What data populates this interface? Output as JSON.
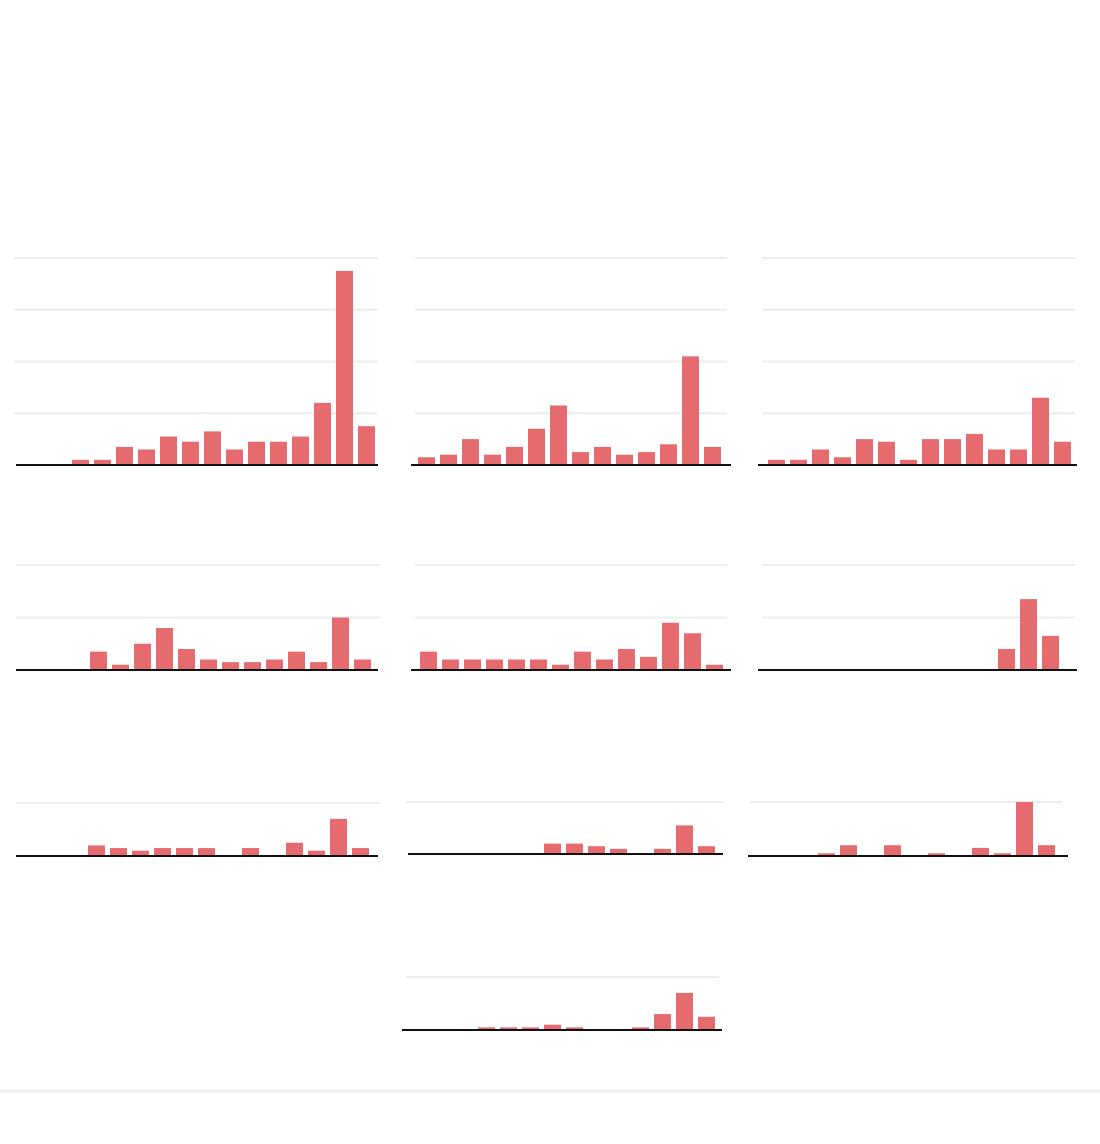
{
  "chart_data": [
    {
      "type": "bar",
      "color": "#e56b6f",
      "ylim": [
        0,
        40
      ],
      "yticks": [
        0,
        10,
        20,
        30,
        40
      ],
      "grid": true,
      "values": [
        1,
        1,
        3.5,
        3,
        5.5,
        4.5,
        6.5,
        3,
        4.5,
        4.5,
        5.5,
        12,
        37.5,
        7.5
      ]
    },
    {
      "type": "bar",
      "color": "#e56b6f",
      "ylim": [
        0,
        40
      ],
      "yticks": [
        0,
        10,
        20,
        30,
        40
      ],
      "grid": true,
      "values": [
        1.5,
        2,
        5,
        2,
        3.5,
        7,
        11.5,
        2.5,
        3.5,
        2,
        2.5,
        4,
        21,
        3.5
      ]
    },
    {
      "type": "bar",
      "color": "#e56b6f",
      "ylim": [
        0,
        40
      ],
      "yticks": [
        0,
        10,
        20,
        30,
        40
      ],
      "grid": true,
      "values": [
        1,
        1,
        3,
        1.5,
        5,
        4.5,
        1,
        5,
        5,
        6,
        3,
        3,
        13,
        4.5
      ]
    },
    {
      "type": "bar",
      "color": "#e56b6f",
      "ylim": [
        0,
        20
      ],
      "yticks": [
        0,
        10,
        20
      ],
      "grid": true,
      "values": [
        3.5,
        1,
        5,
        8,
        4,
        2,
        1.5,
        1.5,
        2,
        3.5,
        1.5,
        10,
        2
      ]
    },
    {
      "type": "bar",
      "color": "#e56b6f",
      "ylim": [
        0,
        20
      ],
      "yticks": [
        0,
        10,
        20
      ],
      "grid": true,
      "values": [
        3.5,
        2,
        2,
        2,
        2,
        2,
        1,
        3.5,
        2,
        4,
        2.5,
        9,
        7,
        1
      ]
    },
    {
      "type": "bar",
      "color": "#e56b6f",
      "ylim": [
        0,
        20
      ],
      "yticks": [
        0,
        10,
        20
      ],
      "grid": true,
      "values": [
        4,
        13.5,
        6.5
      ]
    },
    {
      "type": "bar",
      "color": "#e56b6f",
      "ylim": [
        0,
        10
      ],
      "yticks": [
        0,
        10
      ],
      "grid": true,
      "values": [
        2,
        1.5,
        1,
        1.5,
        1.5,
        1.5,
        null,
        1.5,
        null,
        2.5,
        1,
        7,
        1.5
      ]
    },
    {
      "type": "bar",
      "color": "#e56b6f",
      "ylim": [
        0,
        10
      ],
      "yticks": [
        0,
        10
      ],
      "grid": true,
      "values": [
        2,
        2,
        1.5,
        1,
        null,
        1,
        5.5,
        1.5
      ]
    },
    {
      "type": "bar",
      "color": "#e56b6f",
      "ylim": [
        0,
        10
      ],
      "yticks": [
        0,
        10
      ],
      "grid": true,
      "values": [
        0.5,
        2,
        null,
        2,
        null,
        0.5,
        null,
        1.5,
        0.5,
        10,
        2
      ]
    },
    {
      "type": "bar",
      "color": "#e56b6f",
      "ylim": [
        0,
        10
      ],
      "yticks": [
        0,
        10
      ],
      "grid": true,
      "values": [
        0.5,
        0.5,
        0.5,
        1,
        0.5,
        null,
        null,
        0.5,
        3,
        7,
        2.5
      ]
    }
  ]
}
